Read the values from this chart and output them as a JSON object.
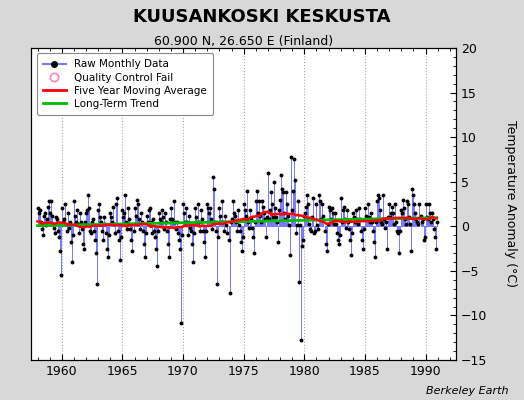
{
  "title": "KUUSANKOSKI KESKUSTA",
  "subtitle": "60.900 N, 26.650 E (Finland)",
  "ylabel": "Temperature Anomaly (°C)",
  "credit": "Berkeley Earth",
  "xlim": [
    1957.5,
    1992.5
  ],
  "ylim": [
    -15,
    20
  ],
  "yticks": [
    -15,
    -10,
    -5,
    0,
    5,
    10,
    15,
    20
  ],
  "xticks": [
    1960,
    1965,
    1970,
    1975,
    1980,
    1985,
    1990
  ],
  "bg_color": "#d8d8d8",
  "plot_bg_color": "#ffffff",
  "raw_line_color": "#7777ff",
  "raw_dot_color": "#000000",
  "moving_avg_color": "#ff0000",
  "trend_color": "#00bb00",
  "start_year": 1958,
  "start_month": 1,
  "n_months": 396,
  "seed": 42,
  "raw_data": [
    2.1,
    1.5,
    1.8,
    0.5,
    -0.3,
    -1.0,
    1.2,
    1.5,
    0.2,
    0.8,
    2.2,
    2.8,
    1.5,
    2.8,
    1.2,
    0.3,
    -0.2,
    -0.8,
    1.0,
    0.8,
    -0.5,
    -1.2,
    -2.8,
    -5.5,
    2.0,
    0.5,
    0.8,
    2.5,
    0.3,
    -0.5,
    1.5,
    -0.2,
    0.5,
    -1.8,
    -4.0,
    -1.0,
    2.8,
    1.2,
    0.5,
    1.8,
    0.3,
    -0.8,
    1.5,
    0.5,
    -0.3,
    -2.0,
    -2.5,
    0.5,
    1.5,
    1.8,
    3.5,
    2.0,
    -0.5,
    -0.8,
    0.5,
    0.8,
    -0.5,
    -1.5,
    -3.0,
    -6.5,
    1.8,
    2.5,
    1.0,
    0.5,
    -0.5,
    -1.5,
    1.0,
    0.3,
    -0.8,
    -2.5,
    -3.5,
    -1.0,
    1.5,
    1.0,
    0.5,
    2.2,
    0.3,
    -0.8,
    2.5,
    3.2,
    -0.5,
    -1.5,
    -3.8,
    -1.2,
    1.8,
    1.0,
    1.5,
    3.5,
    0.5,
    -0.3,
    2.0,
    0.8,
    -0.3,
    -1.5,
    -2.8,
    -0.5,
    2.0,
    1.2,
    3.0,
    2.5,
    0.8,
    -0.3,
    1.5,
    0.5,
    -0.5,
    -2.0,
    -3.5,
    -0.8,
    1.2,
    0.5,
    1.8,
    2.0,
    0.5,
    -0.8,
    0.8,
    -0.5,
    -1.2,
    -2.5,
    -4.5,
    -0.5,
    1.5,
    0.8,
    0.5,
    1.8,
    1.0,
    -0.3,
    1.5,
    0.5,
    -0.5,
    -2.0,
    -3.5,
    0.8,
    2.0,
    0.8,
    0.5,
    2.8,
    0.5,
    -0.3,
    0.5,
    -0.8,
    -1.5,
    -2.5,
    -10.8,
    -1.0,
    2.5,
    1.5,
    0.5,
    2.0,
    0.5,
    -1.0,
    1.2,
    -0.2,
    -0.5,
    -2.0,
    -4.0,
    -0.8,
    2.0,
    1.0,
    0.5,
    2.5,
    0.5,
    -0.5,
    1.8,
    0.8,
    -0.5,
    -1.8,
    -3.5,
    -0.5,
    2.5,
    2.0,
    1.5,
    2.0,
    0.8,
    -0.3,
    5.5,
    4.2,
    0.5,
    -0.5,
    -6.5,
    -1.2,
    2.0,
    1.2,
    0.5,
    2.8,
    0.5,
    -0.5,
    1.2,
    0.2,
    -0.8,
    -1.5,
    -7.5,
    0.5,
    0.8,
    2.8,
    1.5,
    1.2,
    0.5,
    -0.5,
    1.8,
    0.2,
    -0.5,
    -1.8,
    -2.8,
    -1.2,
    2.5,
    1.8,
    1.2,
    4.0,
    0.5,
    -0.2,
    1.8,
    0.8,
    -0.2,
    -1.2,
    -3.0,
    0.5,
    2.8,
    4.0,
    1.5,
    2.8,
    1.2,
    0.5,
    2.8,
    2.2,
    1.5,
    0.8,
    -1.2,
    1.0,
    6.0,
    0.8,
    1.8,
    3.8,
    2.5,
    1.0,
    5.0,
    2.0,
    1.0,
    0.5,
    -1.8,
    1.8,
    3.0,
    5.8,
    4.2,
    3.8,
    1.5,
    0.8,
    3.8,
    2.5,
    1.2,
    0.2,
    -3.2,
    7.8,
    1.8,
    4.0,
    7.5,
    5.2,
    -0.8,
    0.2,
    2.8,
    -6.2,
    0.2,
    -12.8,
    -2.2,
    -1.5,
    1.2,
    1.5,
    2.2,
    3.5,
    2.5,
    0.3,
    -0.3,
    -0.5,
    1.0,
    3.2,
    -0.8,
    -0.5,
    2.5,
    0.2,
    -0.3,
    3.5,
    2.8,
    0.8,
    2.5,
    1.2,
    -0.5,
    -2.0,
    -2.8,
    0.3,
    2.2,
    1.8,
    0.8,
    2.0,
    1.5,
    0.3,
    1.5,
    0.3,
    -0.8,
    -1.5,
    -2.0,
    -1.0,
    3.2,
    0.5,
    1.8,
    2.2,
    0.8,
    -0.2,
    1.8,
    0.5,
    -0.3,
    -1.5,
    -3.2,
    -0.8,
    1.5,
    1.0,
    0.5,
    1.8,
    0.8,
    0.3,
    2.0,
    0.8,
    -0.5,
    -1.5,
    -2.5,
    -0.3,
    2.0,
    1.2,
    0.8,
    2.5,
    1.0,
    0.5,
    1.5,
    0.5,
    -0.5,
    -1.8,
    -3.5,
    0.5,
    2.8,
    3.5,
    3.2,
    1.8,
    0.5,
    0.3,
    3.5,
    0.8,
    -0.2,
    0.5,
    -2.5,
    1.0,
    2.5,
    1.0,
    1.5,
    2.2,
    1.5,
    0.3,
    2.5,
    0.5,
    -0.5,
    -0.8,
    -3.0,
    -0.5,
    1.8,
    1.5,
    3.0,
    2.0,
    0.8,
    0.3,
    2.8,
    2.5,
    1.0,
    0.3,
    -2.8,
    4.2,
    3.5,
    2.5,
    1.5,
    0.8,
    0.5,
    0.3,
    2.5,
    1.2,
    0.5,
    0.8,
    -1.5,
    -1.2,
    2.5,
    1.0,
    0.8,
    2.5,
    1.5,
    0.5,
    1.5,
    0.8,
    -0.3,
    -1.2,
    -2.5,
    0.5
  ]
}
